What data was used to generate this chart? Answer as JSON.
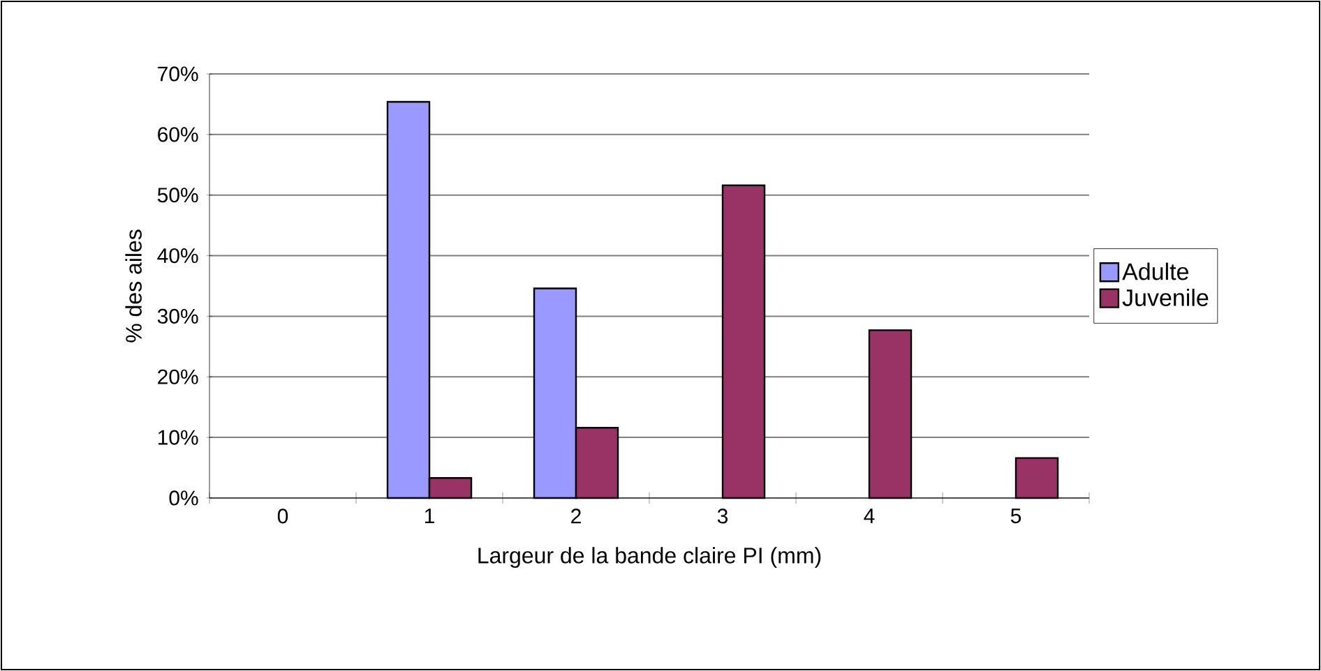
{
  "chart_data": {
    "type": "bar",
    "xlabel": "Largeur de la bande claire PI (mm)",
    "ylabel": "% des ailes",
    "categories": [
      "0",
      "1",
      "2",
      "3",
      "4",
      "5"
    ],
    "series": [
      {
        "name": "Adulte",
        "color": "#9999ff",
        "values": [
          null,
          65.4,
          34.6,
          null,
          null,
          null
        ]
      },
      {
        "name": "Juvenile",
        "color": "#993366",
        "values": [
          null,
          3.3,
          11.6,
          51.6,
          27.7,
          6.6
        ]
      }
    ],
    "ylim": [
      0,
      70
    ],
    "yticks": [
      {
        "value": 0,
        "label": "0%"
      },
      {
        "value": 10,
        "label": "10%"
      },
      {
        "value": 20,
        "label": "20%"
      },
      {
        "value": 30,
        "label": "30%"
      },
      {
        "value": 40,
        "label": "40%"
      },
      {
        "value": 50,
        "label": "50%"
      },
      {
        "value": 60,
        "label": "60%"
      },
      {
        "value": 70,
        "label": "70%"
      }
    ],
    "grid": "y",
    "legend": "right"
  }
}
